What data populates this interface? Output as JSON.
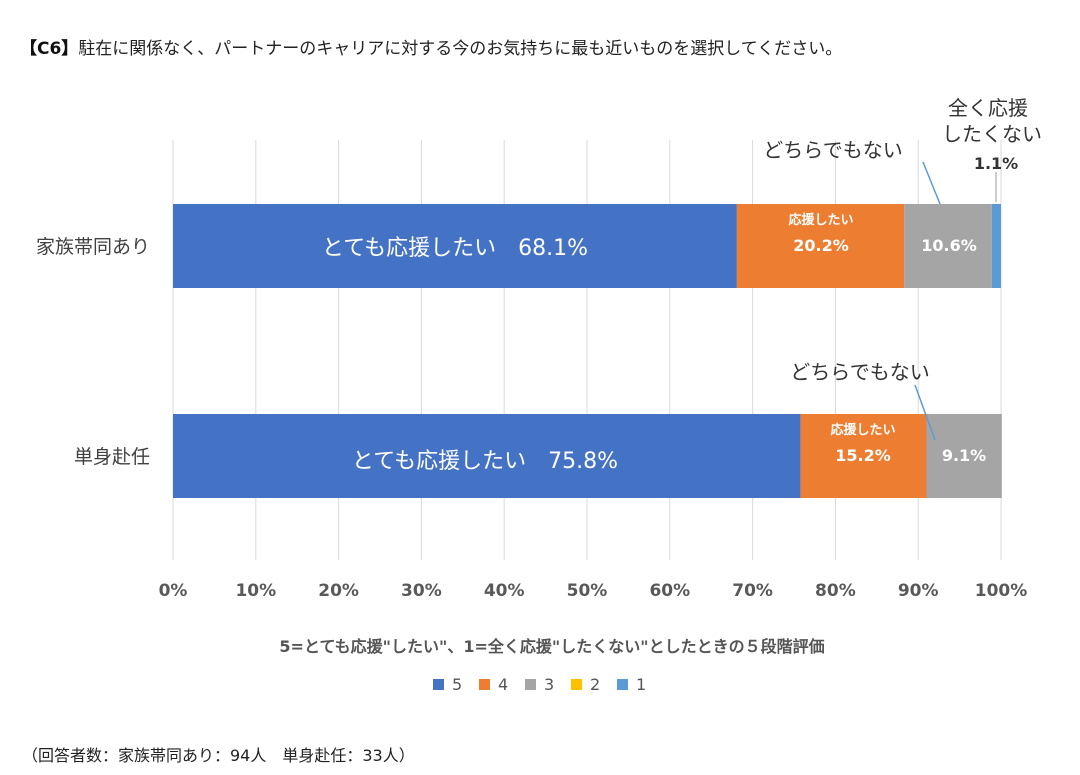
{
  "question": {
    "tag": "【C6】",
    "text": "駐在に関係なく、パートナーのキャリアに対する今のお気持ちに最も近いものを選択してください。"
  },
  "chart_data": {
    "type": "bar",
    "orientation": "horizontal",
    "stacked": true,
    "categories": [
      "家族帯同あり",
      "単身赴任"
    ],
    "series": [
      {
        "name": "5",
        "label": "とても応援したい",
        "color": "#4472C4",
        "values": [
          68.1,
          75.8
        ]
      },
      {
        "name": "4",
        "label": "応援したい",
        "color": "#ED7D31",
        "values": [
          20.2,
          15.2
        ]
      },
      {
        "name": "3",
        "label": "どちらでもない",
        "color": "#A5A5A5",
        "values": [
          10.6,
          9.1
        ]
      },
      {
        "name": "2",
        "label": "",
        "color": "#FFC000",
        "values": [
          0,
          0
        ]
      },
      {
        "name": "1",
        "label": "全く応援したくない",
        "color": "#5B9BD5",
        "values": [
          1.1,
          0
        ]
      }
    ],
    "xlim": [
      0,
      100
    ],
    "xticks": [
      "0%",
      "10%",
      "20%",
      "30%",
      "40%",
      "50%",
      "60%",
      "70%",
      "80%",
      "90%",
      "100%"
    ],
    "grid": true,
    "legend_position": "bottom",
    "bar_labels": {
      "family": {
        "very_support": "とても応援したい　68.1%",
        "support_title": "応援したい",
        "support_value": "20.2%",
        "neutral_value": "10.6%",
        "neutral_callout": "どちらでもない",
        "none_line1": "全く応援",
        "none_line2": "したくない",
        "none_value": "1.1%"
      },
      "single": {
        "very_support": "とても応援したい　75.8%",
        "support_title": "応援したい",
        "support_value": "15.2%",
        "neutral_value": "9.1%",
        "neutral_callout": "どちらでもない"
      }
    },
    "xlabel": "5=とても応援\"したい\"、1=全く応援\"したくない\"としたときの５段階評価"
  },
  "footer": "（回答者数：家族帯同あり：94人　単身赴任：33人）"
}
